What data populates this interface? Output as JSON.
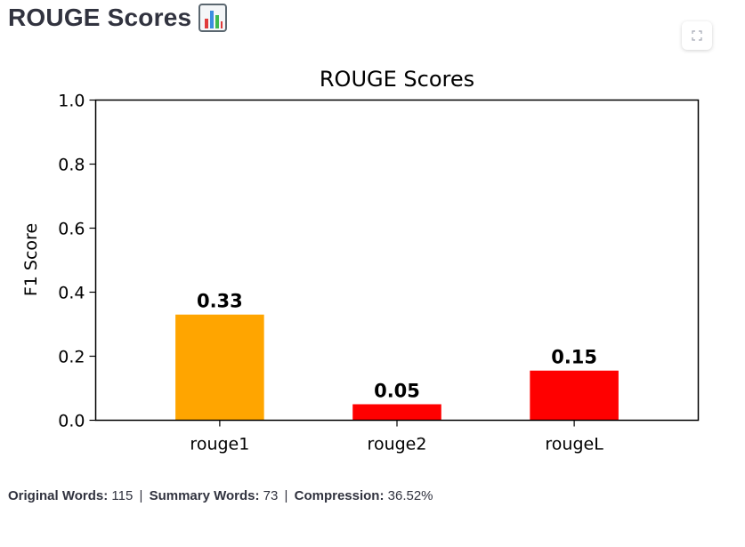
{
  "header": {
    "title": "ROUGE Scores",
    "icon": "bar-chart-emoji-icon"
  },
  "toolbar": {
    "fullscreen_icon": "fullscreen-icon"
  },
  "chart_data": {
    "type": "bar",
    "title": "ROUGE Scores",
    "xlabel": "",
    "ylabel": "F1 Score",
    "categories": [
      "rouge1",
      "rouge2",
      "rougeL"
    ],
    "values": [
      0.33,
      0.05,
      0.155
    ],
    "value_labels": [
      "0.33",
      "0.05",
      "0.15"
    ],
    "colors": [
      "#ffa500",
      "#ff0000",
      "#ff0000"
    ],
    "ylim": [
      0,
      1.0
    ],
    "yticks": [
      "0.0",
      "0.2",
      "0.4",
      "0.6",
      "0.8",
      "1.0"
    ],
    "grid": false
  },
  "stats": {
    "original_label": "Original Words:",
    "original_value": "115",
    "summary_label": "Summary Words:",
    "summary_value": "73",
    "compression_label": "Compression:",
    "compression_value": "36.52%",
    "separator": "|"
  }
}
